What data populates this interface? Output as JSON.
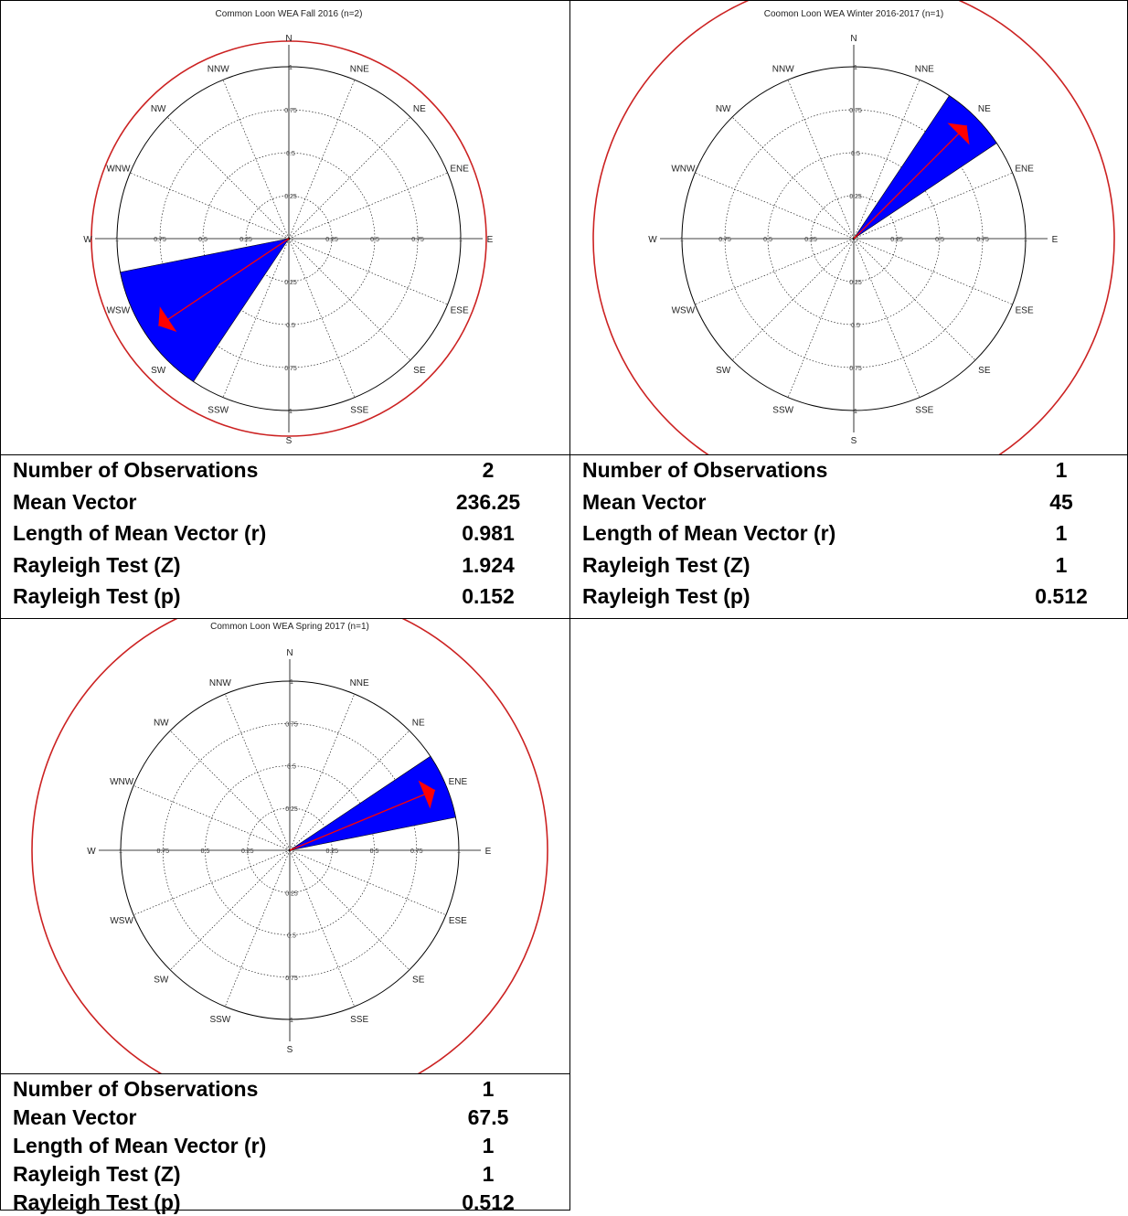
{
  "chart_data": [
    {
      "type": "rose",
      "title": "Common Loon WEA Fall 2016 (n=2)",
      "directions": [
        "N",
        "NNE",
        "NE",
        "ENE",
        "E",
        "ESE",
        "SE",
        "SSE",
        "S",
        "SSW",
        "SW",
        "WSW",
        "W",
        "WNW",
        "NW",
        "NNW"
      ],
      "radial_ticks": [
        "0.25",
        "0.5",
        "0.75",
        "1"
      ],
      "rlim": [
        0,
        1
      ],
      "wedge": {
        "start_deg": 213.75,
        "end_deg": 258.75,
        "value": 1
      },
      "mean_vector": {
        "angle_deg": 236.25,
        "length": 0.981
      },
      "stats": [
        {
          "label": "Number of Observations",
          "value": "2"
        },
        {
          "label": "Mean Vector",
          "value": "236.25"
        },
        {
          "label": "Length of Mean Vector (r)",
          "value": "0.981"
        },
        {
          "label": "Rayleigh Test (Z)",
          "value": "1.924"
        },
        {
          "label": "Rayleigh Test (p)",
          "value": "0.152"
        }
      ]
    },
    {
      "type": "rose",
      "title": "Coomon Loon WEA Winter 2016-2017 (n=1)",
      "directions": [
        "N",
        "NNE",
        "NE",
        "ENE",
        "E",
        "ESE",
        "SE",
        "SSE",
        "S",
        "SSW",
        "SW",
        "WSW",
        "W",
        "WNW",
        "NW",
        "NNW"
      ],
      "radial_ticks": [
        "0.25",
        "0.5",
        "0.75",
        "1"
      ],
      "rlim": [
        0,
        1
      ],
      "wedge": {
        "start_deg": 33.75,
        "end_deg": 56.25,
        "value": 1
      },
      "mean_vector": {
        "angle_deg": 45,
        "length": 1
      },
      "stats": [
        {
          "label": "Number of Observations",
          "value": "1"
        },
        {
          "label": "Mean Vector",
          "value": "45"
        },
        {
          "label": "Length of Mean Vector (r)",
          "value": "1"
        },
        {
          "label": "Rayleigh Test (Z)",
          "value": "1"
        },
        {
          "label": "Rayleigh Test (p)",
          "value": "0.512"
        }
      ]
    },
    {
      "type": "rose",
      "title": "Common Loon WEA Spring 2017 (n=1)",
      "directions": [
        "N",
        "NNE",
        "NE",
        "ENE",
        "E",
        "ESE",
        "SE",
        "SSE",
        "S",
        "SSW",
        "SW",
        "WSW",
        "W",
        "WNW",
        "NW",
        "NNW"
      ],
      "radial_ticks": [
        "0.25",
        "0.5",
        "0.75",
        "1"
      ],
      "rlim": [
        0,
        1
      ],
      "wedge": {
        "start_deg": 56.25,
        "end_deg": 78.75,
        "value": 1
      },
      "mean_vector": {
        "angle_deg": 67.5,
        "length": 1
      },
      "stats": [
        {
          "label": "Number of Observations",
          "value": "1"
        },
        {
          "label": "Mean Vector",
          "value": "67.5"
        },
        {
          "label": "Length of Mean Vector (r)",
          "value": "1"
        },
        {
          "label": "Rayleigh Test (Z)",
          "value": "1"
        },
        {
          "label": "Rayleigh Test (p)",
          "value": "0.512"
        }
      ]
    }
  ],
  "colors": {
    "wedge": "#0000ff",
    "mean_vector": "#ff0000",
    "outer_ring": "#cc2222",
    "grid": "#000000"
  }
}
